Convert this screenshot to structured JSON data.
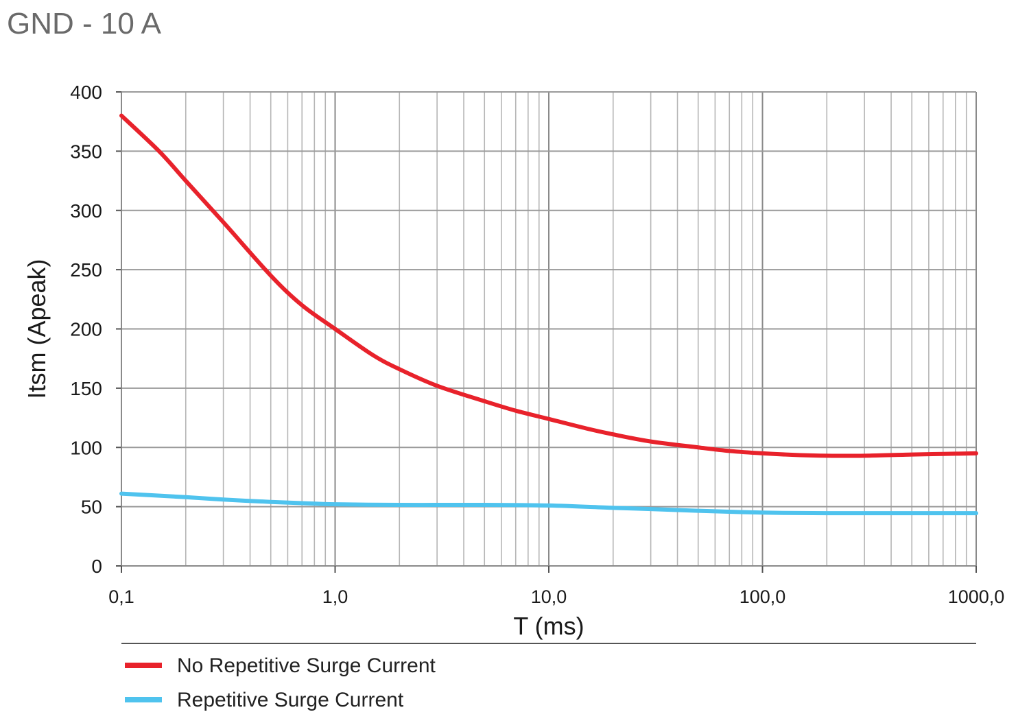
{
  "title": "GND - 10 A",
  "chart_data": {
    "type": "line",
    "title": "GND - 10 A",
    "xlabel": "T (ms)",
    "ylabel": "Itsm (Apeak)",
    "x_scale": "log",
    "xlim": [
      0.1,
      1000
    ],
    "ylim": [
      0,
      400
    ],
    "x_ticks": [
      0.1,
      1,
      10,
      100,
      1000
    ],
    "x_tick_labels": [
      "0,1",
      "1,0",
      "10,0",
      "100,0",
      "1000,0"
    ],
    "y_ticks": [
      0,
      50,
      100,
      150,
      200,
      250,
      300,
      350,
      400
    ],
    "y_tick_labels": [
      "0",
      "50",
      "100",
      "150",
      "200",
      "250",
      "300",
      "350",
      "400"
    ],
    "grid": true,
    "legend_position": "bottom",
    "series": [
      {
        "name": "No Repetitive Surge Current",
        "color": "#e8222b",
        "x": [
          0.1,
          0.15,
          0.2,
          0.3,
          0.5,
          0.7,
          1,
          1.5,
          2,
          3,
          5,
          7,
          10,
          15,
          20,
          30,
          50,
          70,
          100,
          150,
          200,
          300,
          500,
          700,
          1000
        ],
        "y": [
          380,
          350,
          325,
          290,
          245,
          220,
          200,
          178,
          166,
          152,
          139,
          131,
          124,
          116,
          111,
          105,
          100,
          97,
          95,
          93.5,
          93,
          93,
          94,
          94.5,
          95
        ]
      },
      {
        "name": "Repetitive Surge Current",
        "color": "#4fc3ee",
        "x": [
          0.1,
          0.2,
          0.3,
          0.5,
          0.7,
          1,
          2,
          3,
          5,
          10,
          20,
          30,
          50,
          100,
          200,
          500,
          1000
        ],
        "y": [
          61,
          58,
          56,
          54,
          53,
          52,
          51.5,
          51.5,
          51.5,
          51,
          49,
          48,
          46.5,
          45,
          44.5,
          44.5,
          44.5
        ]
      }
    ]
  }
}
